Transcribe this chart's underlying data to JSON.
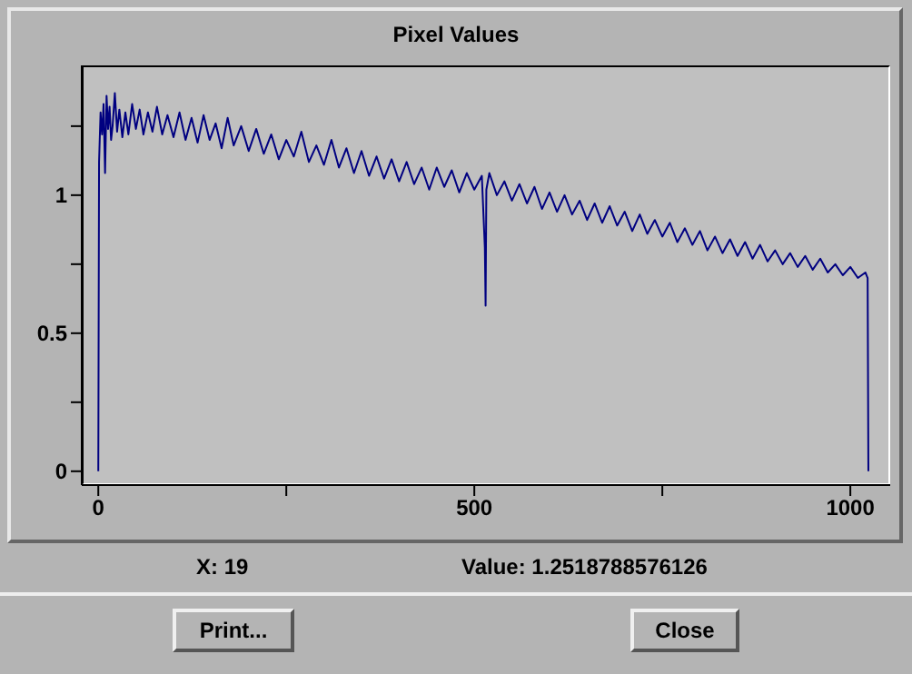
{
  "chart_data": {
    "type": "line",
    "title": "Pixel Values",
    "x": [
      0,
      1,
      3,
      5,
      7,
      9,
      11,
      13,
      15,
      17,
      19,
      22,
      25,
      28,
      32,
      36,
      40,
      45,
      50,
      55,
      60,
      66,
      72,
      78,
      85,
      92,
      100,
      108,
      116,
      124,
      132,
      140,
      148,
      156,
      164,
      172,
      180,
      190,
      200,
      210,
      220,
      230,
      240,
      250,
      260,
      270,
      280,
      290,
      300,
      310,
      320,
      330,
      340,
      350,
      360,
      370,
      380,
      390,
      400,
      410,
      420,
      430,
      440,
      450,
      460,
      470,
      480,
      490,
      500,
      510,
      514,
      515,
      516,
      520,
      530,
      540,
      550,
      560,
      570,
      580,
      590,
      600,
      610,
      620,
      630,
      640,
      650,
      660,
      670,
      680,
      690,
      700,
      710,
      720,
      730,
      740,
      750,
      760,
      770,
      780,
      790,
      800,
      810,
      820,
      830,
      840,
      850,
      860,
      870,
      880,
      890,
      900,
      910,
      920,
      930,
      940,
      950,
      960,
      970,
      980,
      990,
      1000,
      1010,
      1020,
      1023,
      1024
    ],
    "series": [
      {
        "color": "#000080",
        "values": [
          0,
          1.12,
          1.3,
          1.22,
          1.33,
          1.08,
          1.36,
          1.24,
          1.32,
          1.2,
          1.25,
          1.37,
          1.23,
          1.31,
          1.21,
          1.3,
          1.22,
          1.33,
          1.24,
          1.31,
          1.22,
          1.3,
          1.23,
          1.32,
          1.22,
          1.29,
          1.21,
          1.3,
          1.2,
          1.28,
          1.19,
          1.29,
          1.2,
          1.26,
          1.17,
          1.28,
          1.18,
          1.25,
          1.16,
          1.24,
          1.15,
          1.22,
          1.13,
          1.2,
          1.14,
          1.23,
          1.12,
          1.18,
          1.11,
          1.2,
          1.1,
          1.17,
          1.08,
          1.16,
          1.07,
          1.14,
          1.06,
          1.13,
          1.05,
          1.12,
          1.04,
          1.1,
          1.02,
          1.1,
          1.03,
          1.09,
          1.01,
          1.08,
          1.02,
          1.07,
          0.81,
          0.6,
          1.02,
          1.08,
          1.0,
          1.05,
          0.98,
          1.04,
          0.97,
          1.03,
          0.95,
          1.01,
          0.94,
          1.0,
          0.93,
          0.98,
          0.91,
          0.97,
          0.9,
          0.96,
          0.89,
          0.94,
          0.87,
          0.93,
          0.86,
          0.91,
          0.85,
          0.9,
          0.83,
          0.88,
          0.82,
          0.87,
          0.8,
          0.85,
          0.79,
          0.84,
          0.78,
          0.83,
          0.77,
          0.82,
          0.76,
          0.8,
          0.75,
          0.79,
          0.74,
          0.78,
          0.73,
          0.77,
          0.72,
          0.75,
          0.71,
          0.74,
          0.7,
          0.72,
          0.7,
          0
        ]
      }
    ],
    "xlim": [
      -22,
      1053
    ],
    "xticks": [
      0,
      {
        "value": 250,
        "label": null
      },
      500,
      {
        "value": 750,
        "label": null
      },
      1000
    ],
    "ylim": [
      -0.05,
      1.47
    ],
    "yticks": [
      0,
      {
        "value": 0.25,
        "label": null
      },
      0.5,
      {
        "value": 0.75,
        "label": null
      },
      1,
      {
        "value": 1.25,
        "label": null
      }
    ],
    "grid": false,
    "marker": "none",
    "line_style": "solid",
    "annotations": [
      "X: 19",
      "Value: 1.2518788576126",
      "Print...",
      "Close"
    ]
  }
}
